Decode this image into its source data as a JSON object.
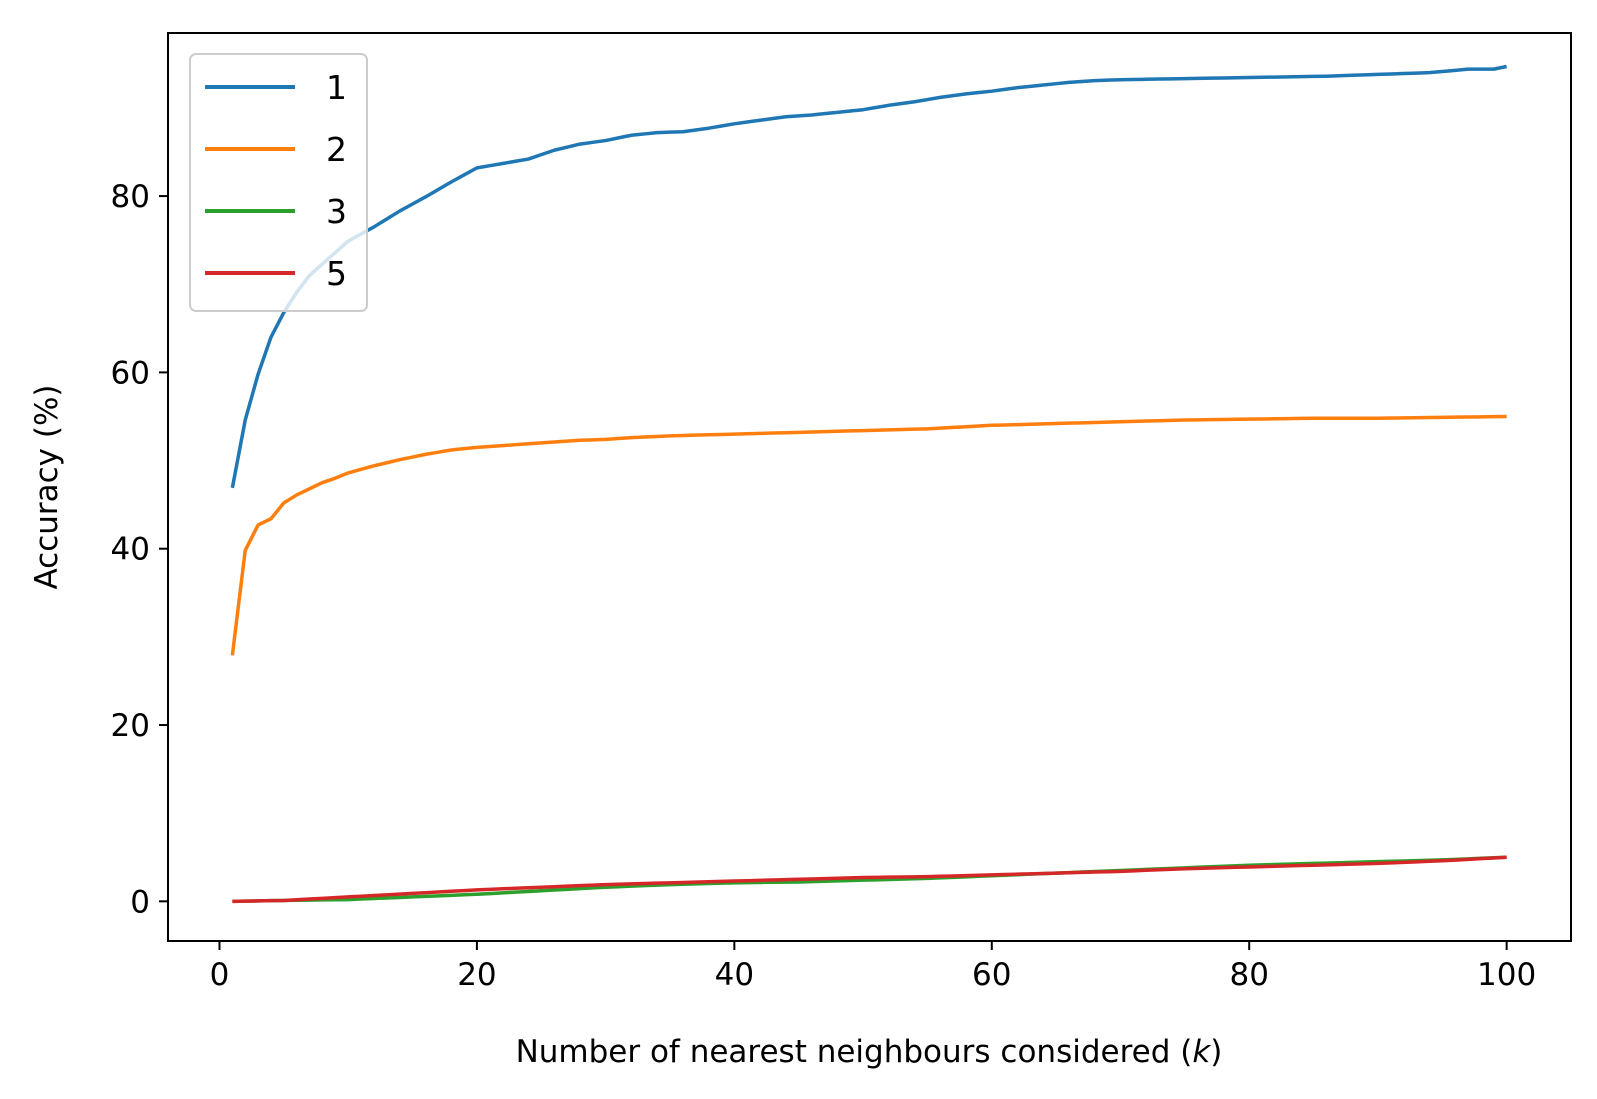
{
  "chart_data": {
    "type": "line",
    "title": "",
    "xlabel": "Number of nearest neighbours considered (",
    "xlabel_var": "k",
    "xlabel_close": ")",
    "ylabel": "Accuracy (%)",
    "xlim": [
      -4,
      105
    ],
    "ylim": [
      -4.5,
      98.5
    ],
    "x_ticks": [
      0,
      20,
      40,
      60,
      80,
      100
    ],
    "y_ticks": [
      0,
      20,
      40,
      60,
      80
    ],
    "grid": false,
    "legend_position": "top-left",
    "x_range": [
      1,
      100
    ],
    "series": [
      {
        "name": "1",
        "color": "#1f77b4",
        "anchors": [
          [
            1,
            46.9
          ],
          [
            2,
            54.6
          ],
          [
            3,
            59.8
          ],
          [
            4,
            64.0
          ],
          [
            5,
            66.8
          ],
          [
            6,
            69.1
          ],
          [
            7,
            71.0
          ],
          [
            8,
            72.3
          ],
          [
            9,
            73.6
          ],
          [
            10,
            74.9
          ],
          [
            12,
            76.5
          ],
          [
            14,
            78.3
          ],
          [
            16,
            79.9
          ],
          [
            18,
            81.6
          ],
          [
            20,
            83.2
          ],
          [
            22,
            83.7
          ],
          [
            24,
            84.2
          ],
          [
            26,
            85.2
          ],
          [
            28,
            85.9
          ],
          [
            30,
            86.3
          ],
          [
            32,
            86.9
          ],
          [
            34,
            87.2
          ],
          [
            36,
            87.3
          ],
          [
            38,
            87.7
          ],
          [
            40,
            88.2
          ],
          [
            42,
            88.6
          ],
          [
            44,
            89.0
          ],
          [
            46,
            89.2
          ],
          [
            48,
            89.5
          ],
          [
            50,
            89.8
          ],
          [
            52,
            90.3
          ],
          [
            54,
            90.7
          ],
          [
            56,
            91.2
          ],
          [
            58,
            91.6
          ],
          [
            60,
            91.9
          ],
          [
            62,
            92.3
          ],
          [
            64,
            92.6
          ],
          [
            66,
            92.9
          ],
          [
            68,
            93.1
          ],
          [
            70,
            93.2
          ],
          [
            74,
            93.3
          ],
          [
            78,
            93.4
          ],
          [
            82,
            93.5
          ],
          [
            86,
            93.6
          ],
          [
            90,
            93.8
          ],
          [
            94,
            94.0
          ],
          [
            97,
            94.4
          ],
          [
            99,
            94.4
          ],
          [
            100,
            94.7
          ]
        ]
      },
      {
        "name": "2",
        "color": "#ff7f0e",
        "anchors": [
          [
            1,
            27.9
          ],
          [
            2,
            39.8
          ],
          [
            3,
            42.7
          ],
          [
            4,
            43.4
          ],
          [
            5,
            45.2
          ],
          [
            6,
            46.1
          ],
          [
            7,
            46.8
          ],
          [
            8,
            47.5
          ],
          [
            9,
            48.0
          ],
          [
            10,
            48.6
          ],
          [
            12,
            49.4
          ],
          [
            14,
            50.1
          ],
          [
            16,
            50.7
          ],
          [
            18,
            51.2
          ],
          [
            20,
            51.5
          ],
          [
            22,
            51.7
          ],
          [
            24,
            51.9
          ],
          [
            26,
            52.1
          ],
          [
            28,
            52.3
          ],
          [
            30,
            52.4
          ],
          [
            32,
            52.6
          ],
          [
            35,
            52.8
          ],
          [
            40,
            53.0
          ],
          [
            45,
            53.2
          ],
          [
            50,
            53.4
          ],
          [
            55,
            53.6
          ],
          [
            60,
            54.0
          ],
          [
            65,
            54.2
          ],
          [
            70,
            54.4
          ],
          [
            75,
            54.6
          ],
          [
            80,
            54.7
          ],
          [
            85,
            54.8
          ],
          [
            90,
            54.8
          ],
          [
            95,
            54.9
          ],
          [
            100,
            55.0
          ]
        ]
      },
      {
        "name": "3",
        "color": "#2ca02c",
        "anchors": [
          [
            1,
            0.0
          ],
          [
            5,
            0.1
          ],
          [
            10,
            0.2
          ],
          [
            15,
            0.5
          ],
          [
            20,
            0.8
          ],
          [
            25,
            1.2
          ],
          [
            30,
            1.6
          ],
          [
            35,
            1.9
          ],
          [
            40,
            2.1
          ],
          [
            45,
            2.2
          ],
          [
            50,
            2.4
          ],
          [
            55,
            2.6
          ],
          [
            60,
            2.9
          ],
          [
            65,
            3.2
          ],
          [
            70,
            3.5
          ],
          [
            75,
            3.8
          ],
          [
            80,
            4.1
          ],
          [
            85,
            4.3
          ],
          [
            90,
            4.5
          ],
          [
            95,
            4.7
          ],
          [
            100,
            5.0
          ]
        ]
      },
      {
        "name": "5",
        "color": "#d62728",
        "anchors": [
          [
            1,
            0.0
          ],
          [
            5,
            0.1
          ],
          [
            10,
            0.5
          ],
          [
            15,
            0.9
          ],
          [
            20,
            1.3
          ],
          [
            25,
            1.6
          ],
          [
            30,
            1.9
          ],
          [
            35,
            2.1
          ],
          [
            40,
            2.3
          ],
          [
            45,
            2.5
          ],
          [
            50,
            2.7
          ],
          [
            55,
            2.8
          ],
          [
            60,
            3.0
          ],
          [
            65,
            3.2
          ],
          [
            70,
            3.4
          ],
          [
            75,
            3.7
          ],
          [
            80,
            3.9
          ],
          [
            85,
            4.1
          ],
          [
            90,
            4.3
          ],
          [
            95,
            4.6
          ],
          [
            100,
            5.0
          ]
        ]
      }
    ]
  }
}
